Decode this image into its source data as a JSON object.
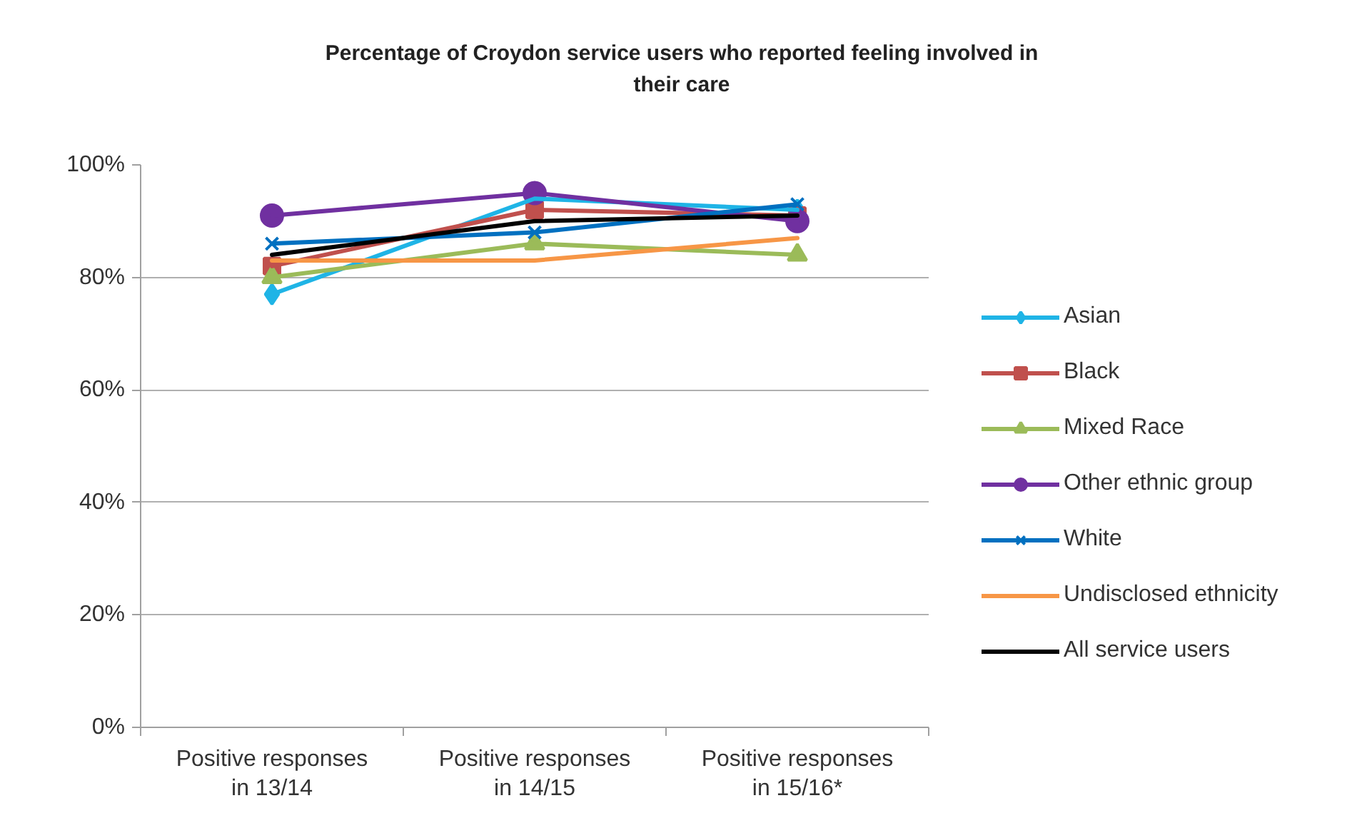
{
  "chart_data": {
    "type": "line",
    "title": "Percentage of Croydon service users who reported feeling involved in their care",
    "categories": [
      "Positive responses in 13/14",
      "Positive responses in 14/15",
      "Positive responses in 15/16*"
    ],
    "ylim": [
      0,
      100
    ],
    "yticks": [
      {
        "value": 0,
        "label": "0%"
      },
      {
        "value": 20,
        "label": "20%"
      },
      {
        "value": 40,
        "label": "40%"
      },
      {
        "value": 60,
        "label": "60%"
      },
      {
        "value": 80,
        "label": "80%"
      },
      {
        "value": 100,
        "label": "100%"
      }
    ],
    "grid": "y",
    "legend": "right",
    "series": [
      {
        "name": "Asian",
        "color": "#1fb4e6",
        "marker": "diamond",
        "values": [
          77,
          94,
          92
        ]
      },
      {
        "name": "Black",
        "color": "#c0504d",
        "marker": "square",
        "values": [
          82,
          92,
          91
        ]
      },
      {
        "name": "Mixed Race",
        "color": "#9bbb59",
        "marker": "triangle",
        "values": [
          80,
          86,
          84
        ]
      },
      {
        "name": "Other ethnic group",
        "color": "#7030a0",
        "marker": "circle",
        "values": [
          91,
          95,
          90
        ]
      },
      {
        "name": "White",
        "color": "#0070c0",
        "marker": "cross",
        "values": [
          86,
          88,
          93
        ]
      },
      {
        "name": "Undisclosed ethnicity",
        "color": "#f79646",
        "marker": "none",
        "values": [
          83,
          83,
          87
        ]
      },
      {
        "name": "All service users",
        "color": "#000000",
        "marker": "none",
        "values": [
          84,
          90,
          91
        ]
      }
    ]
  }
}
